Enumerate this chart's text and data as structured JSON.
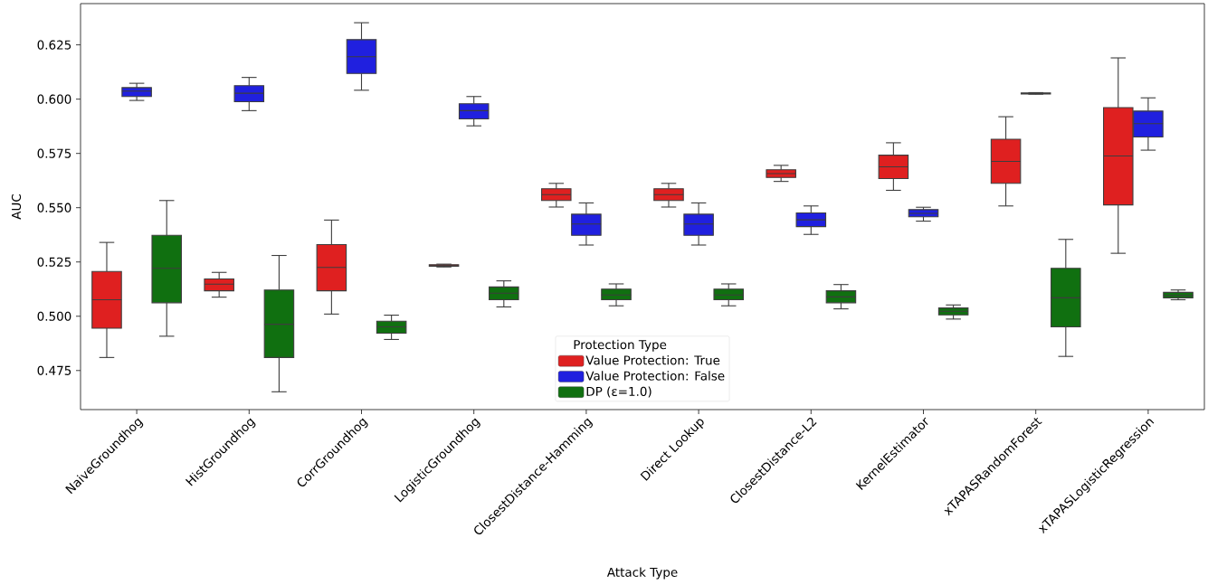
{
  "chart_data": {
    "type": "box",
    "categories": [
      "NaiveGroundhog",
      "HistGroundhog",
      "CorrGroundhog",
      "LogisticGroundhog",
      "ClosestDistance-Hamming",
      "Direct Lookup",
      "ClosestDistance-L2",
      "KernelEstimator",
      "xTAPASRandomForest",
      "xTAPASLogisticRegression"
    ],
    "xlabel": "Attack Type",
    "ylabel": "AUC",
    "legend_title": "Protection Type",
    "legend": "bottom",
    "grid": false,
    "ylim": [
      0.457,
      0.644
    ],
    "yticks": [
      0.475,
      {
        "value": 0.5,
        "label": "0.500"
      },
      0.525,
      {
        "value": 0.55,
        "label": "0.550"
      },
      0.575,
      {
        "value": 0.6,
        "label": "0.600"
      },
      0.625
    ],
    "series": [
      {
        "name": "Value Protection: True",
        "color": "#df2020",
        "boxes": [
          {
            "low": 0.481,
            "q1": 0.4945,
            "median": 0.5076,
            "q3": 0.5206,
            "high": 0.534
          },
          {
            "low": 0.5088,
            "q1": 0.5117,
            "median": 0.5148,
            "q3": 0.5172,
            "high": 0.5202
          },
          {
            "low": 0.501,
            "q1": 0.5117,
            "median": 0.5225,
            "q3": 0.533,
            "high": 0.5443
          },
          {
            "low": 0.5227,
            "q1": 0.523,
            "median": 0.5233,
            "q3": 0.5237,
            "high": 0.524
          },
          {
            "low": 0.5503,
            "q1": 0.5533,
            "median": 0.556,
            "q3": 0.5587,
            "high": 0.5612
          },
          {
            "low": 0.5503,
            "q1": 0.5533,
            "median": 0.556,
            "q3": 0.5587,
            "high": 0.5612
          },
          {
            "low": 0.5621,
            "q1": 0.5639,
            "median": 0.5657,
            "q3": 0.5675,
            "high": 0.5695
          },
          {
            "low": 0.558,
            "q1": 0.5634,
            "median": 0.5688,
            "q3": 0.5742,
            "high": 0.5799
          },
          {
            "low": 0.5508,
            "q1": 0.5612,
            "median": 0.5713,
            "q3": 0.5815,
            "high": 0.5919
          },
          {
            "low": 0.529,
            "q1": 0.5513,
            "median": 0.5738,
            "q3": 0.5961,
            "high": 0.619
          }
        ]
      },
      {
        "name": "Value Protection: False",
        "color": "#2020df",
        "boxes": [
          {
            "low": 0.5994,
            "q1": 0.6012,
            "median": 0.6037,
            "q3": 0.6053,
            "high": 0.6073
          },
          {
            "low": 0.5947,
            "q1": 0.5988,
            "median": 0.6027,
            "q3": 0.6062,
            "high": 0.61
          },
          {
            "low": 0.6041,
            "q1": 0.6118,
            "median": 0.6195,
            "q3": 0.6274,
            "high": 0.6352
          },
          {
            "low": 0.5877,
            "q1": 0.5909,
            "median": 0.5947,
            "q3": 0.5979,
            "high": 0.6012
          },
          {
            "low": 0.5328,
            "q1": 0.5373,
            "median": 0.5425,
            "q3": 0.547,
            "high": 0.5522
          },
          {
            "low": 0.5328,
            "q1": 0.5373,
            "median": 0.5425,
            "q3": 0.547,
            "high": 0.5522
          },
          {
            "low": 0.5377,
            "q1": 0.5413,
            "median": 0.5444,
            "q3": 0.5476,
            "high": 0.5508
          },
          {
            "low": 0.5438,
            "q1": 0.5458,
            "median": 0.5474,
            "q3": 0.5491,
            "high": 0.5502
          },
          {
            "low": 0.6023,
            "q1": 0.6024,
            "median": 0.6026,
            "q3": 0.6028,
            "high": 0.603
          },
          {
            "low": 0.5765,
            "q1": 0.5826,
            "median": 0.5887,
            "q3": 0.5945,
            "high": 0.6006
          }
        ]
      },
      {
        "name": "DP (ε=1.0)",
        "color": "#107010",
        "boxes": [
          {
            "low": 0.4908,
            "q1": 0.5062,
            "median": 0.5221,
            "q3": 0.5373,
            "high": 0.5533
          },
          {
            "low": 0.4652,
            "q1": 0.481,
            "median": 0.4963,
            "q3": 0.5121,
            "high": 0.528
          },
          {
            "low": 0.4893,
            "q1": 0.4922,
            "median": 0.4951,
            "q3": 0.4977,
            "high": 0.5005
          },
          {
            "low": 0.5043,
            "q1": 0.5076,
            "median": 0.5106,
            "q3": 0.5135,
            "high": 0.5163
          },
          {
            "low": 0.5048,
            "q1": 0.5076,
            "median": 0.5098,
            "q3": 0.5125,
            "high": 0.5149
          },
          {
            "low": 0.5048,
            "q1": 0.5076,
            "median": 0.5098,
            "q3": 0.5125,
            "high": 0.5149
          },
          {
            "low": 0.5034,
            "q1": 0.5062,
            "median": 0.5089,
            "q3": 0.5117,
            "high": 0.5146
          },
          {
            "low": 0.4987,
            "q1": 0.5006,
            "median": 0.5023,
            "q3": 0.5038,
            "high": 0.5052
          },
          {
            "low": 0.4815,
            "q1": 0.4951,
            "median": 0.5085,
            "q3": 0.5221,
            "high": 0.5354
          },
          {
            "low": 0.5076,
            "q1": 0.5085,
            "median": 0.5096,
            "q3": 0.511,
            "high": 0.5121
          }
        ]
      }
    ]
  }
}
